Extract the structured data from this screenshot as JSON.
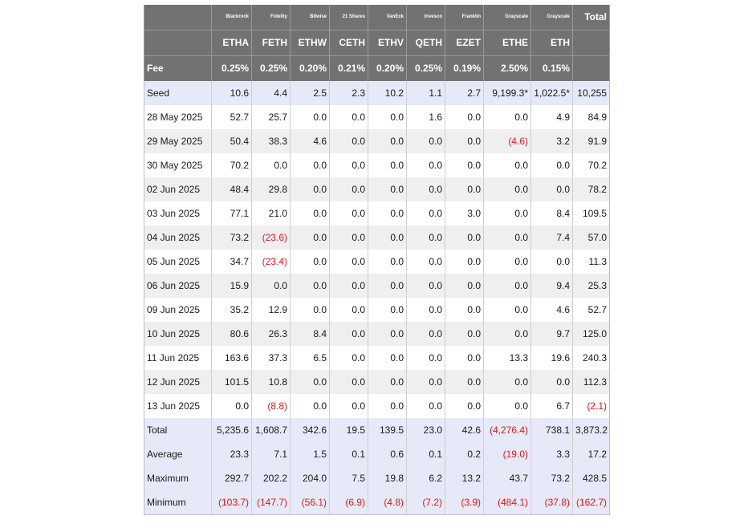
{
  "issuers": [
    "Blackrock",
    "Fidelity",
    "Bitwise",
    "21 Shares",
    "VanEck",
    "Invesco",
    "Franklin",
    "Grayscale",
    "Grayscale"
  ],
  "total_header": "Total",
  "tickers": [
    "ETHA",
    "FETH",
    "ETHW",
    "CETH",
    "ETHV",
    "QETH",
    "EZET",
    "ETHE",
    "ETH"
  ],
  "fee_label": "Fee",
  "fees": [
    "0.25%",
    "0.25%",
    "0.20%",
    "0.21%",
    "0.20%",
    "0.25%",
    "0.19%",
    "2.50%",
    "0.15%"
  ],
  "rows": [
    {
      "label": "Seed",
      "style": "blue",
      "cells": [
        "10.6",
        "4.4",
        "2.5",
        "2.3",
        "10.2",
        "1.1",
        "2.7",
        "9,199.3*",
        "1,022.5*",
        "10,255"
      ]
    },
    {
      "label": "28 May 2025",
      "style": "white",
      "cells": [
        "52.7",
        "25.7",
        "0.0",
        "0.0",
        "0.0",
        "1.6",
        "0.0",
        "0.0",
        "4.9",
        "84.9"
      ]
    },
    {
      "label": "29 May 2025",
      "style": "shade",
      "cells": [
        "50.4",
        "38.3",
        "4.6",
        "0.0",
        "0.0",
        "0.0",
        "0.0",
        "(4.6)",
        "3.2",
        "91.9"
      ]
    },
    {
      "label": "30 May 2025",
      "style": "white",
      "cells": [
        "70.2",
        "0.0",
        "0.0",
        "0.0",
        "0.0",
        "0.0",
        "0.0",
        "0.0",
        "0.0",
        "70.2"
      ]
    },
    {
      "label": "02 Jun 2025",
      "style": "shade",
      "cells": [
        "48.4",
        "29.8",
        "0.0",
        "0.0",
        "0.0",
        "0.0",
        "0.0",
        "0.0",
        "0.0",
        "78.2"
      ]
    },
    {
      "label": "03 Jun 2025",
      "style": "white",
      "cells": [
        "77.1",
        "21.0",
        "0.0",
        "0.0",
        "0.0",
        "0.0",
        "3.0",
        "0.0",
        "8.4",
        "109.5"
      ]
    },
    {
      "label": "04 Jun 2025",
      "style": "shade",
      "cells": [
        "73.2",
        "(23.6)",
        "0.0",
        "0.0",
        "0.0",
        "0.0",
        "0.0",
        "0.0",
        "7.4",
        "57.0"
      ]
    },
    {
      "label": "05 Jun 2025",
      "style": "white",
      "cells": [
        "34.7",
        "(23.4)",
        "0.0",
        "0.0",
        "0.0",
        "0.0",
        "0.0",
        "0.0",
        "0.0",
        "11.3"
      ]
    },
    {
      "label": "06 Jun 2025",
      "style": "shade",
      "cells": [
        "15.9",
        "0.0",
        "0.0",
        "0.0",
        "0.0",
        "0.0",
        "0.0",
        "0.0",
        "9.4",
        "25.3"
      ]
    },
    {
      "label": "09 Jun 2025",
      "style": "white",
      "cells": [
        "35.2",
        "12.9",
        "0.0",
        "0.0",
        "0.0",
        "0.0",
        "0.0",
        "0.0",
        "4.6",
        "52.7"
      ]
    },
    {
      "label": "10 Jun 2025",
      "style": "shade",
      "cells": [
        "80.6",
        "26.3",
        "8.4",
        "0.0",
        "0.0",
        "0.0",
        "0.0",
        "0.0",
        "9.7",
        "125.0"
      ]
    },
    {
      "label": "11 Jun 2025",
      "style": "white",
      "cells": [
        "163.6",
        "37.3",
        "6.5",
        "0.0",
        "0.0",
        "0.0",
        "0.0",
        "13.3",
        "19.6",
        "240.3"
      ]
    },
    {
      "label": "12 Jun 2025",
      "style": "shade",
      "cells": [
        "101.5",
        "10.8",
        "0.0",
        "0.0",
        "0.0",
        "0.0",
        "0.0",
        "0.0",
        "0.0",
        "112.3"
      ]
    },
    {
      "label": "13 Jun 2025",
      "style": "white",
      "cells": [
        "0.0",
        "(8.8)",
        "0.0",
        "0.0",
        "0.0",
        "0.0",
        "0.0",
        "0.0",
        "6.7",
        "(2.1)"
      ]
    },
    {
      "label": "Total",
      "style": "blue",
      "cells": [
        "5,235.6",
        "1,608.7",
        "342.6",
        "19.5",
        "139.5",
        "23.0",
        "42.6",
        "(4,276.4)",
        "738.1",
        "3,873.2"
      ]
    },
    {
      "label": "Average",
      "style": "blue",
      "cells": [
        "23.3",
        "7.1",
        "1.5",
        "0.1",
        "0.6",
        "0.1",
        "0.2",
        "(19.0)",
        "3.3",
        "17.2"
      ]
    },
    {
      "label": "Maximum",
      "style": "blue",
      "cells": [
        "292.7",
        "202.2",
        "204.0",
        "7.5",
        "19.8",
        "6.2",
        "13.2",
        "43.7",
        "73.2",
        "428.5"
      ]
    },
    {
      "label": "Minimum",
      "style": "blue",
      "cells": [
        "(103.7)",
        "(147.7)",
        "(56.1)",
        "(6.9)",
        "(4.8)",
        "(7.2)",
        "(3.9)",
        "(484.1)",
        "(37.8)",
        "(162.7)"
      ]
    }
  ],
  "colors": {
    "header_bg": "#727272",
    "stripe": "#efefef",
    "summary_bg": "#e6e9f7",
    "negative": "#e0191b"
  }
}
